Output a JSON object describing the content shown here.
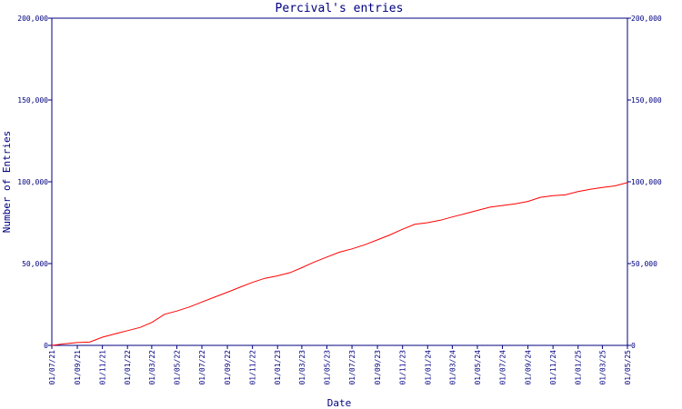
{
  "chart_data": {
    "type": "line",
    "title": "Percival's entries",
    "xlabel": "Date",
    "ylabel": "Number of Entries",
    "y_ticks": [
      0,
      50000,
      100000,
      150000,
      200000
    ],
    "y_tick_labels": [
      "0",
      "50,000",
      "100,000",
      "150,000",
      "200,000"
    ],
    "ylim": [
      0,
      200000
    ],
    "xlim": [
      "2021-07-01",
      "2025-05-01"
    ],
    "x_tick_labels": [
      "01/07/21",
      "01/09/21",
      "01/11/21",
      "01/01/22",
      "01/03/22",
      "01/05/22",
      "01/07/22",
      "01/09/22",
      "01/11/22",
      "01/01/23",
      "01/03/23",
      "01/05/23",
      "01/07/23",
      "01/09/23",
      "01/11/23",
      "01/01/24",
      "01/03/24",
      "01/05/24",
      "01/07/24",
      "01/09/24",
      "01/11/24",
      "01/01/25",
      "01/03/25",
      "01/05/25"
    ],
    "x_tick_dates": [
      "2021-07-01",
      "2021-09-01",
      "2021-11-01",
      "2022-01-01",
      "2022-03-01",
      "2022-05-01",
      "2022-07-01",
      "2022-09-01",
      "2022-11-01",
      "2023-01-01",
      "2023-03-01",
      "2023-05-01",
      "2023-07-01",
      "2023-09-01",
      "2023-11-01",
      "2024-01-01",
      "2024-03-01",
      "2024-05-01",
      "2024-07-01",
      "2024-09-01",
      "2024-11-01",
      "2025-01-01",
      "2025-03-01",
      "2025-05-01"
    ],
    "grid": false,
    "legend": "none",
    "series": [
      {
        "color": "#ff0000",
        "points": [
          [
            "2021-07-01",
            0
          ],
          [
            "2021-08-01",
            1000
          ],
          [
            "2021-09-01",
            1700
          ],
          [
            "2021-10-01",
            2000
          ],
          [
            "2021-11-01",
            5000
          ],
          [
            "2021-12-01",
            7000
          ],
          [
            "2022-01-01",
            9000
          ],
          [
            "2022-02-01",
            11000
          ],
          [
            "2022-03-01",
            14000
          ],
          [
            "2022-04-01",
            19000
          ],
          [
            "2022-05-01",
            21000
          ],
          [
            "2022-06-01",
            23500
          ],
          [
            "2022-07-01",
            26500
          ],
          [
            "2022-08-01",
            29500
          ],
          [
            "2022-09-01",
            32500
          ],
          [
            "2022-10-01",
            35500
          ],
          [
            "2022-11-01",
            38500
          ],
          [
            "2022-12-01",
            41000
          ],
          [
            "2023-01-01",
            42500
          ],
          [
            "2023-02-01",
            44500
          ],
          [
            "2023-03-01",
            47500
          ],
          [
            "2023-04-01",
            51000
          ],
          [
            "2023-05-01",
            54000
          ],
          [
            "2023-06-01",
            57000
          ],
          [
            "2023-07-01",
            59000
          ],
          [
            "2023-08-01",
            61500
          ],
          [
            "2023-09-01",
            64500
          ],
          [
            "2023-10-01",
            67500
          ],
          [
            "2023-11-01",
            71000
          ],
          [
            "2023-12-01",
            74000
          ],
          [
            "2024-01-01",
            75000
          ],
          [
            "2024-02-01",
            76500
          ],
          [
            "2024-03-01",
            78500
          ],
          [
            "2024-04-01",
            80500
          ],
          [
            "2024-05-01",
            82500
          ],
          [
            "2024-06-01",
            84500
          ],
          [
            "2024-07-01",
            85500
          ],
          [
            "2024-08-01",
            86500
          ],
          [
            "2024-09-01",
            88000
          ],
          [
            "2024-10-01",
            90500
          ],
          [
            "2024-11-01",
            91500
          ],
          [
            "2024-12-01",
            92000
          ],
          [
            "2025-01-01",
            94000
          ],
          [
            "2025-02-01",
            95500
          ],
          [
            "2025-03-01",
            96500
          ],
          [
            "2025-04-01",
            97500
          ],
          [
            "2025-05-01",
            99500
          ]
        ]
      }
    ]
  }
}
